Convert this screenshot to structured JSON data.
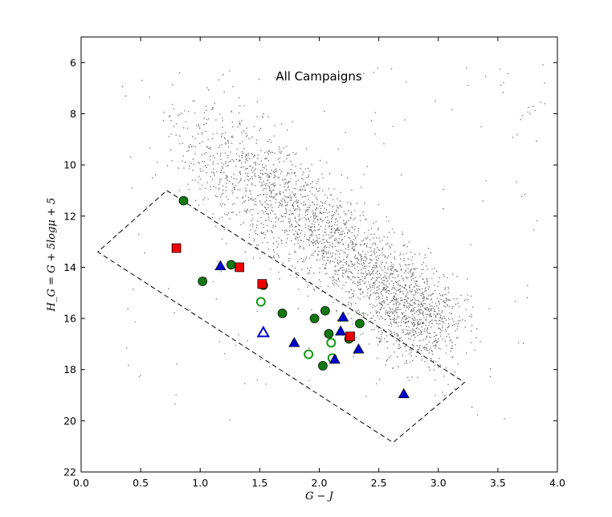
{
  "chart_data": {
    "type": "scatter",
    "title": "All Campaigns",
    "xlabel": "G − J",
    "ylabel": "H_G = G + 5logμ + 5",
    "xlim": [
      0.0,
      4.0
    ],
    "ylim": [
      22,
      5
    ],
    "y_inverted": true,
    "xticks": [
      "0.0",
      "0.5",
      "1.0",
      "1.5",
      "2.0",
      "2.5",
      "3.0",
      "3.5",
      "4.0"
    ],
    "yticks": [
      "6",
      "8",
      "10",
      "12",
      "14",
      "16",
      "18",
      "20",
      "22"
    ],
    "grid": false,
    "background_points": {
      "description_color": "#555555",
      "marker": "small dots",
      "approx_count": 3500,
      "note": "dense diagonal band from (0.8, 8) to (3.2, 17.5), densest near (2.8, 16)"
    },
    "selection_box": {
      "style": "dashed",
      "color": "#000000",
      "vertices": [
        [
          0.72,
          11.0
        ],
        [
          3.22,
          18.5
        ],
        [
          2.62,
          20.85
        ],
        [
          0.14,
          13.4
        ],
        [
          0.72,
          11.0
        ]
      ]
    },
    "series": [
      {
        "marker": "filled-circle",
        "color": "#117711",
        "points": [
          [
            0.86,
            11.4
          ],
          [
            1.02,
            14.55
          ],
          [
            1.26,
            13.9
          ],
          [
            1.53,
            14.7
          ],
          [
            1.69,
            15.8
          ],
          [
            1.96,
            16.0
          ],
          [
            2.05,
            15.7
          ],
          [
            2.08,
            16.6
          ],
          [
            2.25,
            16.8
          ],
          [
            2.34,
            16.2
          ],
          [
            2.03,
            17.85
          ]
        ]
      },
      {
        "marker": "open-circle",
        "color": "#119911",
        "points": [
          [
            1.51,
            15.35
          ],
          [
            1.91,
            17.4
          ],
          [
            2.1,
            16.95
          ],
          [
            2.11,
            17.55
          ]
        ]
      },
      {
        "marker": "filled-triangle",
        "color": "#0000cc",
        "points": [
          [
            1.17,
            13.95
          ],
          [
            1.79,
            16.95
          ],
          [
            2.18,
            16.5
          ],
          [
            2.2,
            15.95
          ],
          [
            2.13,
            17.6
          ],
          [
            2.33,
            17.2
          ],
          [
            2.71,
            18.95
          ]
        ]
      },
      {
        "marker": "open-triangle",
        "color": "#0000cc",
        "points": [
          [
            1.53,
            16.55
          ]
        ]
      },
      {
        "marker": "filled-square",
        "color": "#ee0000",
        "points": [
          [
            0.8,
            13.25
          ],
          [
            1.33,
            14.0
          ],
          [
            1.52,
            14.65
          ],
          [
            2.26,
            16.7
          ]
        ]
      }
    ]
  }
}
